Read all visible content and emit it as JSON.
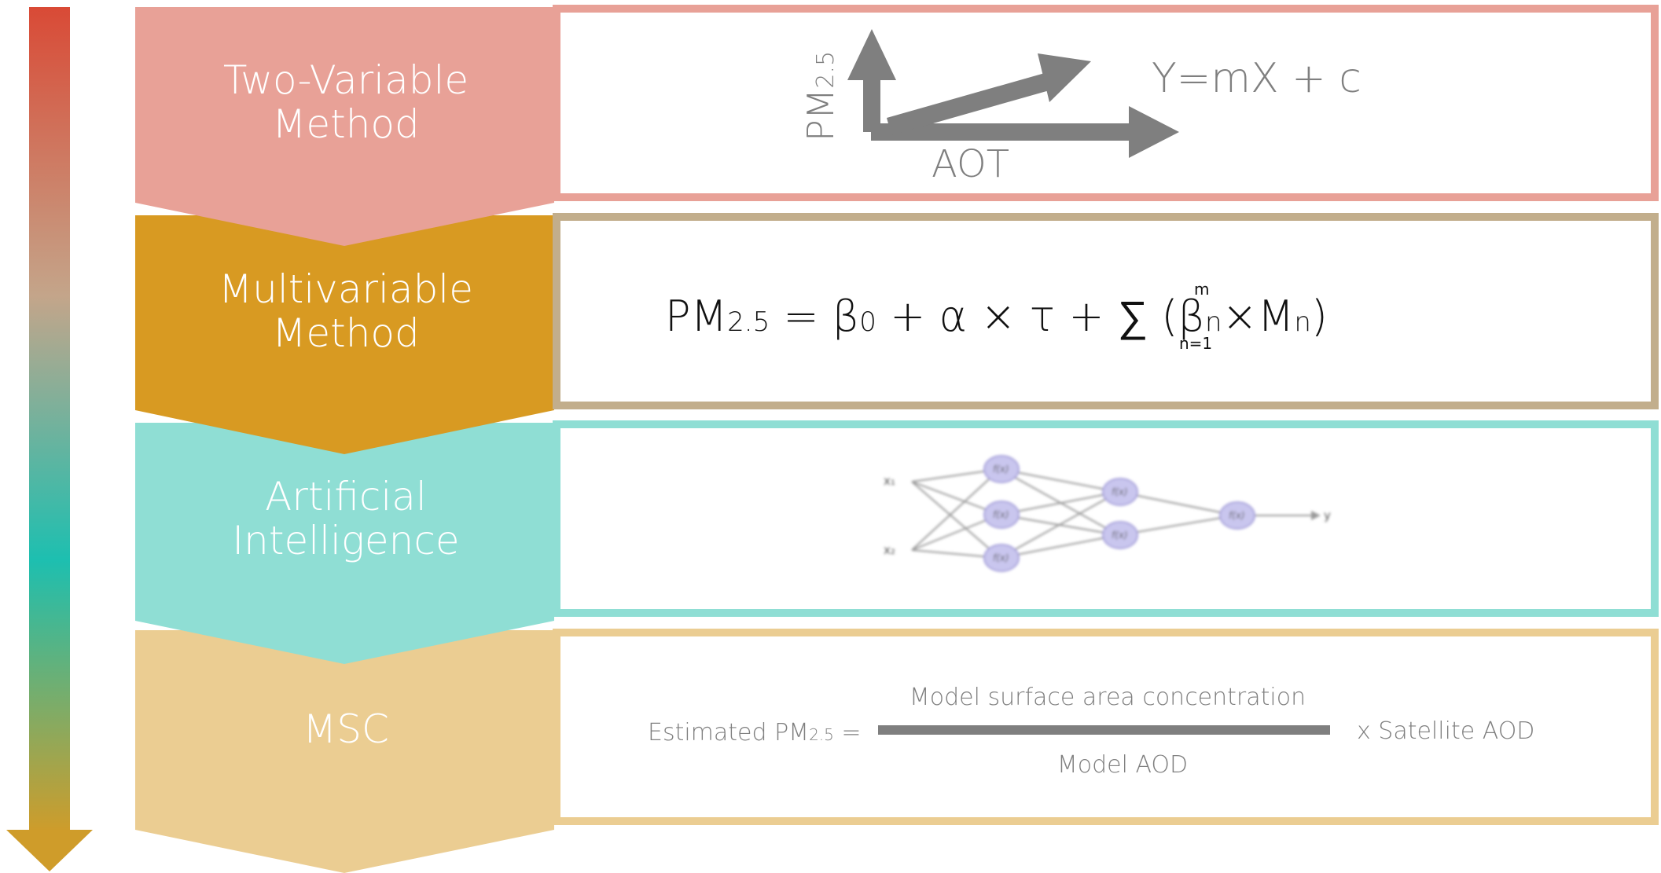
{
  "colors": {
    "two_variable": "#e8a197",
    "multivariable": "#d89a22",
    "artificial_intelligence": "#8fded4",
    "msc": "#ebcd92",
    "arrow_top": "#d94a36",
    "arrow_mid": "#1dbfb0",
    "arrow_bottom": "#cf9c2a",
    "panel_border_2": "#c2ae8c",
    "grey": "#7f7f7f"
  },
  "methods": [
    {
      "line1": "Two-Variable",
      "line2": "Method"
    },
    {
      "line1": "Multivariable",
      "line2": "Method"
    },
    {
      "line1": "Artificial",
      "line2": "Intelligence"
    },
    {
      "line1": "MSC",
      "line2": ""
    }
  ],
  "two_variable_panel": {
    "y_axis_label": "PM",
    "y_axis_sub": "2.5",
    "x_axis_label": "AOT",
    "equation": "Y=mX + c"
  },
  "multivariable_panel": {
    "formula_main": "PM",
    "formula_sub": "2.5",
    "eq_part1": " = β",
    "beta_sub": "0",
    "eq_part2": " + α × τ + ∑ (β",
    "beta_n_sub": "n",
    "times": "×",
    "m_sym": "M",
    "m_sub": "n",
    "close": ")",
    "sum_top": "m",
    "sum_bottom": "n=1"
  },
  "ai_panel": {
    "input_1": "x₁",
    "input_2": "x₂",
    "node_label": "f(x)",
    "output": "y"
  },
  "msc_panel": {
    "lhs": "Estimated PM",
    "lhs_sub": "2.5",
    "lhs_eq": " =",
    "numerator": "Model surface area concentration",
    "denominator": "Model AOD",
    "rhs": "x Satellite AOD"
  }
}
